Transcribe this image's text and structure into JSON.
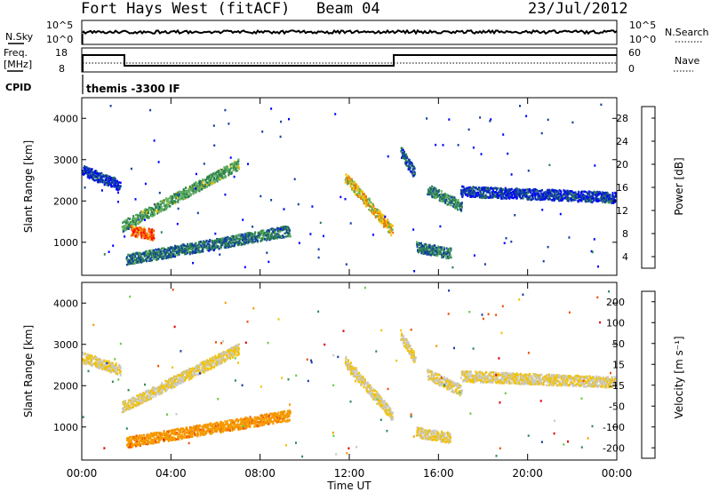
{
  "header": {
    "station": "Fort Hays West (fitACF)",
    "beam": "Beam 04",
    "date": "23/Jul/2012"
  },
  "top_panels": {
    "nsky_label": "N.Sky",
    "nsky_ticks": [
      "10^5",
      "10^0"
    ],
    "nsearch_label": "N.Search",
    "nsearch_ticks": [
      "10^5",
      "10^0"
    ],
    "freq_label_1": "Freq.",
    "freq_label_2": "[MHz]",
    "freq_ticks": [
      "18",
      "8"
    ],
    "nave_label": "Nave",
    "nave_ticks": [
      "60",
      "0"
    ],
    "cpid_label": "CPID",
    "cpid_value": "themis -3300 IF"
  },
  "chart_data": [
    {
      "type": "heatmap",
      "name": "power-panel",
      "ylabel": "Slant Range [km]",
      "yticks": [
        "1000",
        "2000",
        "3000",
        "4000"
      ],
      "ylim": [
        200,
        4500
      ],
      "xlim": [
        0,
        24
      ],
      "colorbar_label": "Power [dB]",
      "colorbar_ticks": [
        "28",
        "24",
        "20",
        "16",
        "12",
        "8",
        "4"
      ],
      "colors": [
        "#0000ff",
        "#1040a0",
        "#2c8050",
        "#60b060",
        "#f0c000",
        "#f07000",
        "#ff0000"
      ],
      "echo_bands": [
        {
          "t_start": 0.0,
          "t_end": 1.7,
          "range_start": 2750,
          "range_end": 2400,
          "power": 6
        },
        {
          "t_start": 1.8,
          "t_end": 7.0,
          "range_start": 1400,
          "range_end": 2900,
          "power": 14
        },
        {
          "t_start": 2.2,
          "t_end": 3.2,
          "range_start": 1300,
          "range_end": 1200,
          "power": 26
        },
        {
          "t_start": 2.0,
          "t_end": 9.3,
          "range_start": 600,
          "range_end": 1300,
          "power": 10
        },
        {
          "t_start": 11.8,
          "t_end": 13.9,
          "range_start": 2600,
          "range_end": 1300,
          "power": 20
        },
        {
          "t_start": 14.3,
          "t_end": 14.9,
          "range_start": 3200,
          "range_end": 2700,
          "power": 8
        },
        {
          "t_start": 15.0,
          "t_end": 16.5,
          "range_start": 900,
          "range_end": 750,
          "power": 10
        },
        {
          "t_start": 15.5,
          "t_end": 17.0,
          "range_start": 2300,
          "range_end": 1900,
          "power": 12
        },
        {
          "t_start": 17.0,
          "t_end": 24.0,
          "range_start": 2250,
          "range_end": 2100,
          "power": 6
        }
      ]
    },
    {
      "type": "heatmap",
      "name": "velocity-panel",
      "ylabel": "Slant Range [km]",
      "yticks": [
        "1000",
        "2000",
        "3000",
        "4000"
      ],
      "ylim": [
        200,
        4500
      ],
      "xlim": [
        0,
        24
      ],
      "xlabel": "Time UT",
      "xticks": [
        "00:00",
        "04:00",
        "08:00",
        "12:00",
        "16:00",
        "20:00",
        "00:00"
      ],
      "colorbar_label": "Velocity [m s⁻¹]",
      "colorbar_ticks": [
        "200",
        "100",
        "50",
        "15",
        "-15",
        "-50",
        "-100",
        "-200"
      ],
      "colors": [
        "#1a3ca8",
        "#2f8a56",
        "#66cc44",
        "#c8c8c8",
        "#f2c200",
        "#f59a00",
        "#f05000",
        "#e00000"
      ],
      "echo_bands": [
        {
          "t_start": 0.0,
          "t_end": 1.7,
          "range_start": 2700,
          "range_end": 2400,
          "velocity": 0
        },
        {
          "t_start": 1.8,
          "t_end": 7.0,
          "range_start": 1500,
          "range_end": 2900,
          "velocity": 0
        },
        {
          "t_start": 2.0,
          "t_end": 9.3,
          "range_start": 650,
          "range_end": 1300,
          "velocity": -60
        },
        {
          "t_start": 11.8,
          "t_end": 13.9,
          "range_start": 2600,
          "range_end": 1300,
          "velocity": 0
        },
        {
          "t_start": 14.3,
          "t_end": 14.9,
          "range_start": 3200,
          "range_end": 2700,
          "velocity": 0
        },
        {
          "t_start": 15.0,
          "t_end": 16.5,
          "range_start": 900,
          "range_end": 750,
          "velocity": 0
        },
        {
          "t_start": 15.5,
          "t_end": 17.0,
          "range_start": 2300,
          "range_end": 1900,
          "velocity": 0
        },
        {
          "t_start": 17.0,
          "t_end": 24.0,
          "range_start": 2250,
          "range_end": 2100,
          "velocity": 0
        }
      ]
    }
  ]
}
